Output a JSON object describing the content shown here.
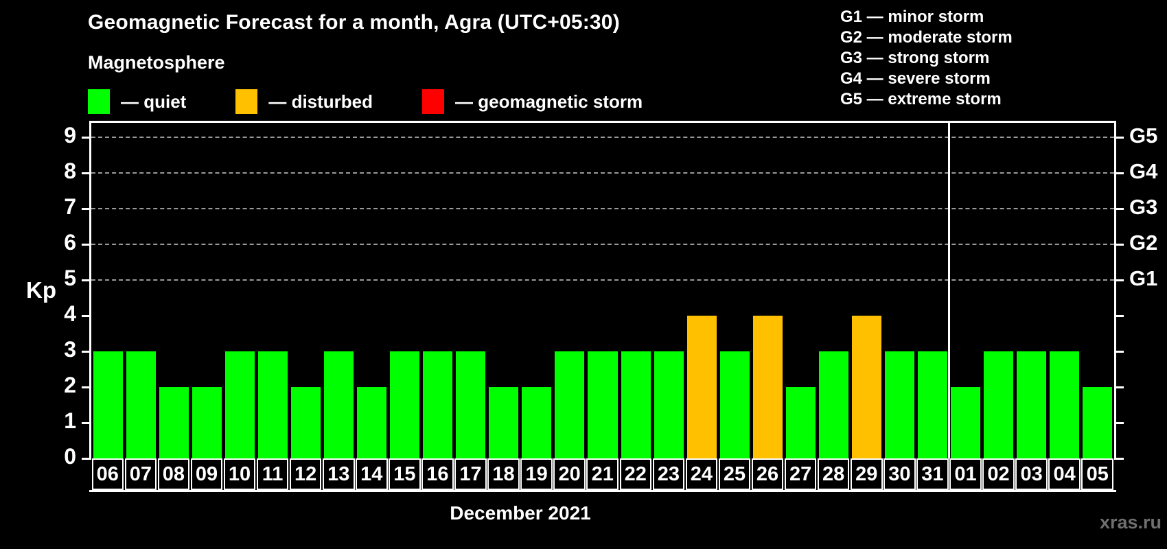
{
  "header": {
    "title": "Geomagnetic Forecast for a month, Agra (UTC+05:30)",
    "subtitle": "Magnetosphere",
    "watermark": "xras.ru"
  },
  "legend": {
    "items": [
      {
        "name": "quiet",
        "label": "— quiet",
        "color": "#00ff00"
      },
      {
        "name": "disturbed",
        "label": "— disturbed",
        "color": "#ffc000"
      },
      {
        "name": "storm",
        "label": "— geomagnetic storm",
        "color": "#ff0000"
      }
    ]
  },
  "storm_legend": {
    "lines": [
      "G1 — minor storm",
      "G2 — moderate storm",
      "G3 — strong storm",
      "G4 — severe storm",
      "G5 — extreme storm"
    ]
  },
  "chart_data": {
    "type": "bar",
    "title": "Geomagnetic Forecast for a month, Agra (UTC+05:30)",
    "xlabel": "December 2021",
    "ylabel": "Kp",
    "ylim": [
      0,
      9.4
    ],
    "yticks": [
      0,
      1,
      2,
      3,
      4,
      5,
      6,
      7,
      8,
      9
    ],
    "gridlines_at": [
      5,
      6,
      7,
      8,
      9
    ],
    "grid": "dashed-horizontal",
    "legend_position": "top-left",
    "right_axis_labels": [
      {
        "label": "G5",
        "kp": 9
      },
      {
        "label": "G4",
        "kp": 8
      },
      {
        "label": "G3",
        "kp": 7
      },
      {
        "label": "G2",
        "kp": 6
      },
      {
        "label": "G1",
        "kp": 5
      }
    ],
    "categories": [
      "06",
      "07",
      "08",
      "09",
      "10",
      "11",
      "12",
      "13",
      "14",
      "15",
      "16",
      "17",
      "18",
      "19",
      "20",
      "21",
      "22",
      "23",
      "24",
      "25",
      "26",
      "27",
      "28",
      "29",
      "30",
      "31",
      "01",
      "02",
      "03",
      "04",
      "05"
    ],
    "values": [
      3,
      3,
      2,
      2,
      3,
      3,
      2,
      3,
      2,
      3,
      3,
      3,
      2,
      2,
      3,
      3,
      3,
      3,
      4,
      3,
      4,
      2,
      3,
      4,
      3,
      3,
      2,
      3,
      3,
      3,
      2
    ],
    "month_separator_index": 26,
    "colors": {
      "quiet": "#00ff00",
      "disturbed": "#ffc000",
      "storm": "#ff0000"
    },
    "thresholds": {
      "disturbed_min": 4,
      "storm_min": 5
    }
  }
}
